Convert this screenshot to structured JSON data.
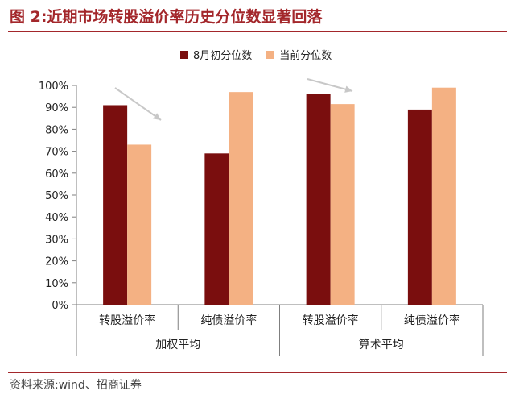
{
  "figure": {
    "title": "图 2:近期市场转股溢价率历史分位数显著回落",
    "source": "资料来源:wind、招商证券"
  },
  "colors": {
    "title": "#a3272b",
    "series_a": "#7a0e0e",
    "series_b": "#f4b183",
    "arrow": "#c8c8c8",
    "axis": "#7f7f7f"
  },
  "chart_data": {
    "type": "bar",
    "groups": [
      "加权平均",
      "算术平均"
    ],
    "categories": [
      "转股溢价率",
      "纯债溢价率",
      "转股溢价率",
      "纯债溢价率"
    ],
    "series": [
      {
        "name": "8月初分位数",
        "values": [
          91,
          69,
          96,
          89
        ]
      },
      {
        "name": "当前分位数",
        "values": [
          73,
          97,
          91.5,
          99
        ]
      }
    ],
    "ylim": [
      0,
      100
    ],
    "yticks": [
      "0%",
      "10%",
      "20%",
      "30%",
      "40%",
      "50%",
      "60%",
      "70%",
      "80%",
      "90%",
      "100%"
    ],
    "grid": false,
    "legend_position": "top"
  }
}
